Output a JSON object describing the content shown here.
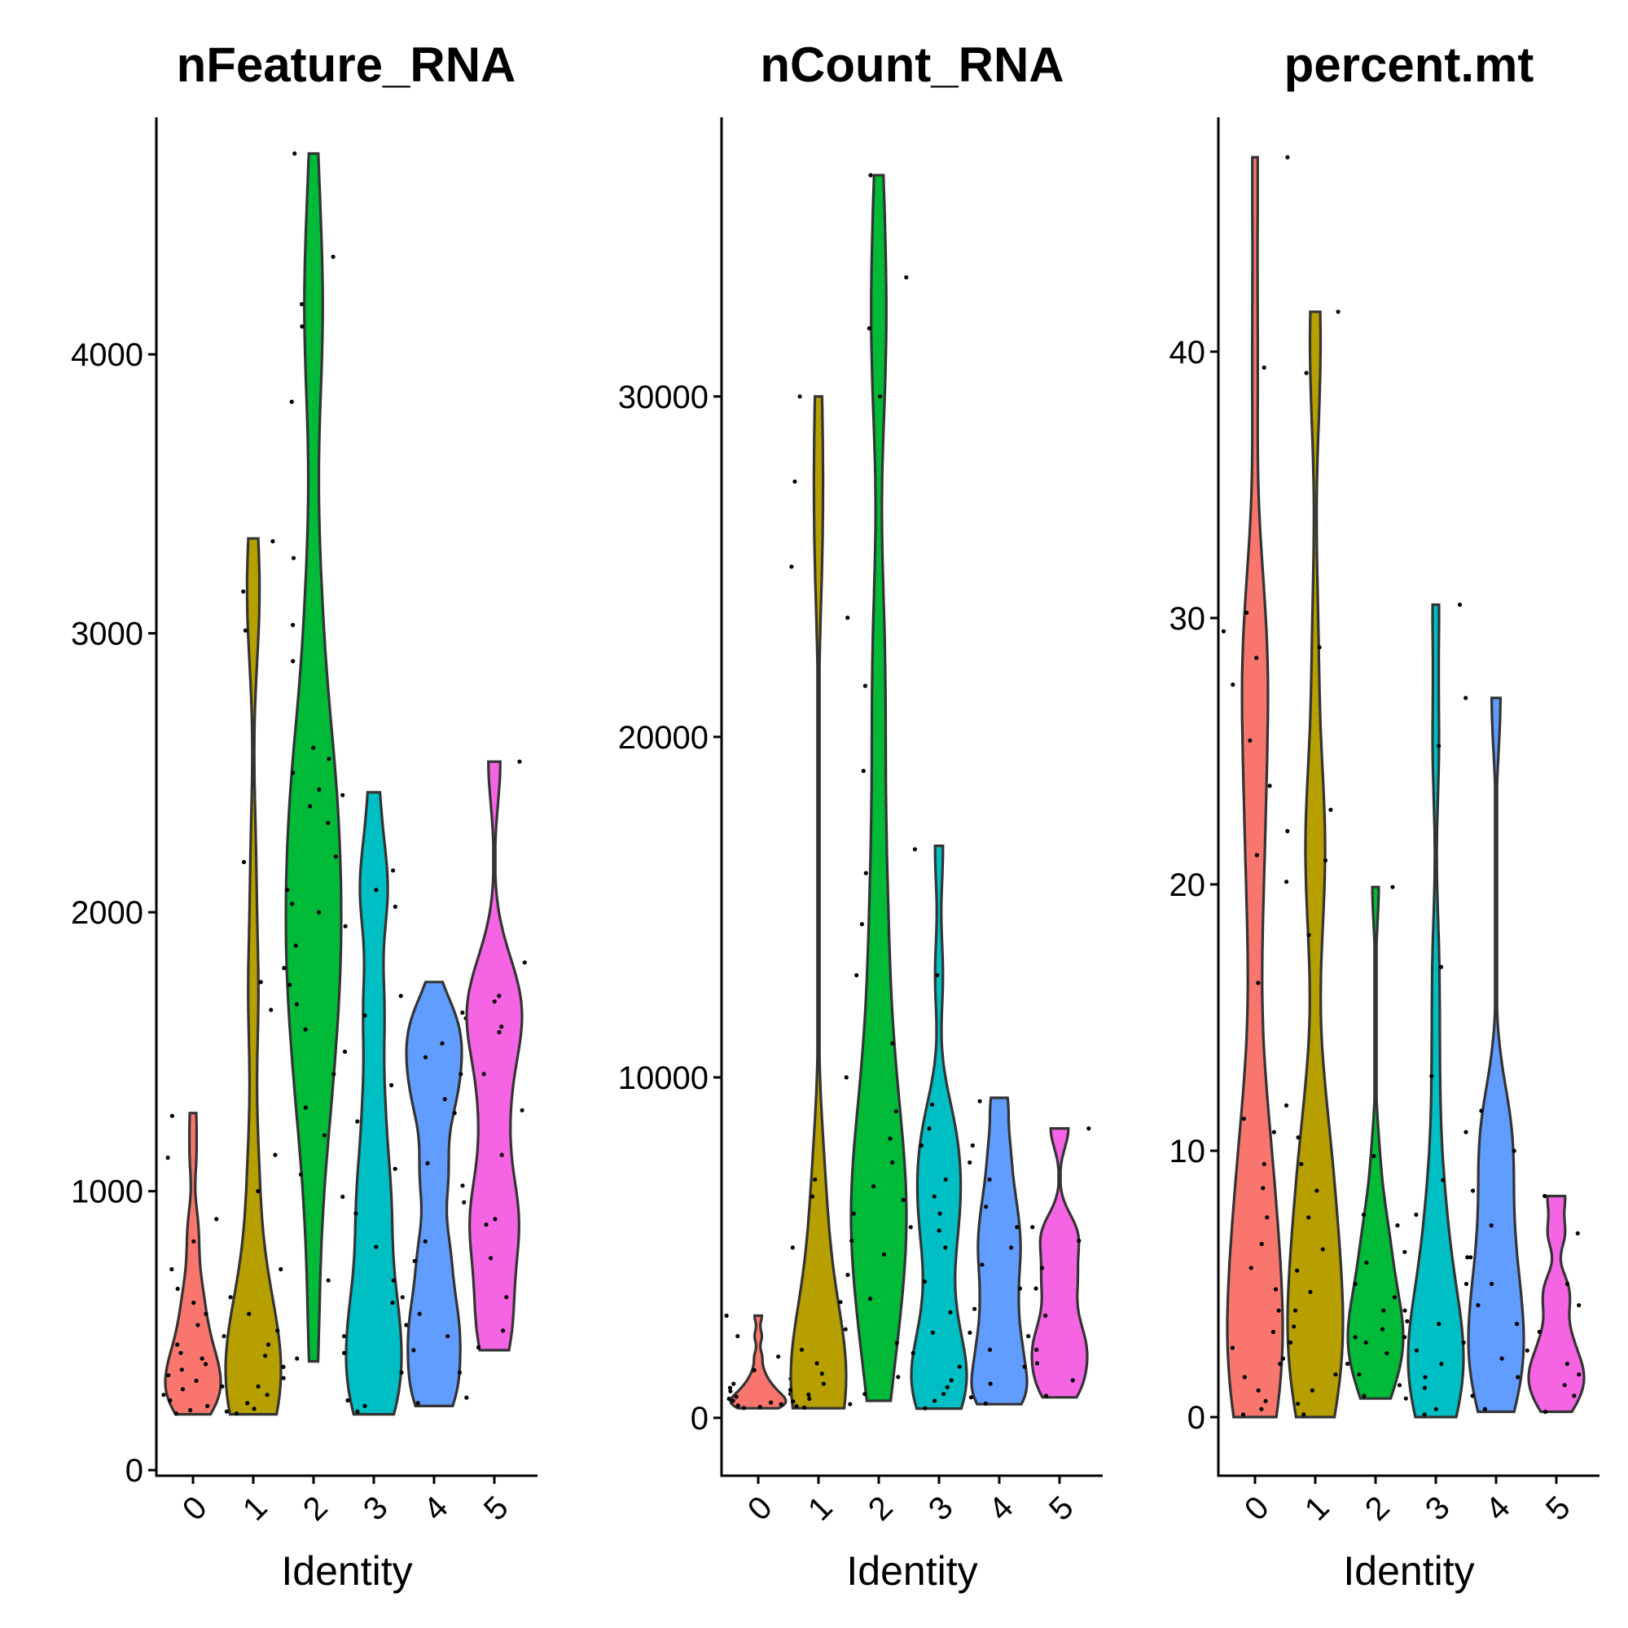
{
  "chart_data": [
    {
      "type": "violin",
      "title": "nFeature_RNA",
      "xlabel": "Identity",
      "ylabel": "",
      "categories": [
        "0",
        "1",
        "2",
        "3",
        "4",
        "5"
      ],
      "colors": [
        "#F8766D",
        "#B79F00",
        "#00BA38",
        "#00BFC4",
        "#619CFF",
        "#F564E3"
      ],
      "ylim": [
        -20,
        4850
      ],
      "yticks": [
        0,
        1000,
        2000,
        3000,
        4000
      ],
      "ytick_labels": [
        "0",
        "1000",
        "2000",
        "3000",
        "4000"
      ],
      "series": [
        {
          "category": "0",
          "min": 200,
          "max": 1280,
          "values": [
            203,
            215,
            230,
            250,
            270,
            290,
            300,
            320,
            340,
            360,
            380,
            400,
            420,
            450,
            480,
            520,
            560,
            600,
            650,
            720,
            820,
            900,
            1120,
            1270
          ]
        },
        {
          "category": "1",
          "min": 200,
          "max": 3340,
          "values": [
            203,
            210,
            220,
            240,
            270,
            300,
            330,
            370,
            410,
            450,
            500,
            560,
            620,
            720,
            1000,
            1130,
            1650,
            1750,
            2180,
            3010,
            3150,
            3330
          ]
        },
        {
          "category": "2",
          "min": 390,
          "max": 4720,
          "values": [
            400,
            680,
            1060,
            1200,
            1300,
            1420,
            1500,
            1580,
            1670,
            1740,
            1800,
            1880,
            1950,
            2000,
            2030,
            2080,
            2200,
            2320,
            2380,
            2440,
            2500,
            2550,
            2590,
            2900,
            3030,
            3270,
            3830,
            4100,
            4180,
            4350,
            4720
          ]
        },
        {
          "category": "3",
          "min": 200,
          "max": 2430,
          "values": [
            210,
            230,
            250,
            350,
            420,
            480,
            520,
            600,
            680,
            800,
            920,
            980,
            1080,
            1250,
            1380,
            1630,
            1700,
            2020,
            2080,
            2150,
            2420
          ]
        },
        {
          "category": "4",
          "min": 230,
          "max": 1750,
          "values": [
            240,
            260,
            350,
            430,
            480,
            560,
            620,
            750,
            820,
            1020,
            1100,
            1280,
            1330,
            1420,
            1480,
            1530,
            1620,
            1640
          ]
        },
        {
          "category": "5",
          "min": 430,
          "max": 2540,
          "values": [
            440,
            500,
            620,
            760,
            880,
            900,
            960,
            1130,
            1290,
            1420,
            1570,
            1590,
            1680,
            1700,
            1820,
            2540
          ]
        }
      ]
    },
    {
      "type": "violin",
      "title": "nCount_RNA",
      "xlabel": "Identity",
      "ylabel": "",
      "categories": [
        "0",
        "1",
        "2",
        "3",
        "4",
        "5"
      ],
      "colors": [
        "#F8766D",
        "#B79F00",
        "#00BA38",
        "#00BFC4",
        "#619CFF",
        "#F564E3"
      ],
      "ylim": [
        -1700,
        38200
      ],
      "yticks": [
        0,
        10000,
        20000,
        30000
      ],
      "ytick_labels": [
        "0",
        "10000",
        "20000",
        "30000"
      ],
      "series": [
        {
          "category": "0",
          "min": 280,
          "max": 3000,
          "values": [
            290,
            320,
            360,
            400,
            450,
            500,
            560,
            620,
            700,
            780,
            880,
            1000,
            1150,
            1400,
            1800,
            2400,
            3000
          ]
        },
        {
          "category": "1",
          "min": 280,
          "max": 30000,
          "values": [
            300,
            340,
            400,
            480,
            560,
            680,
            820,
            1000,
            1300,
            1600,
            2000,
            2600,
            3400,
            5000,
            6500,
            7000,
            25000,
            27500,
            30000
          ]
        },
        {
          "category": "2",
          "min": 500,
          "max": 36500,
          "values": [
            700,
            1200,
            2200,
            3500,
            4200,
            4800,
            5200,
            5600,
            6000,
            6400,
            6800,
            7500,
            8200,
            9000,
            10000,
            11000,
            13000,
            14500,
            16000,
            19000,
            21500,
            23500,
            30000,
            32000,
            33500,
            36500
          ]
        },
        {
          "category": "3",
          "min": 270,
          "max": 16800,
          "values": [
            280,
            500,
            700,
            900,
            1100,
            1500,
            1900,
            2500,
            3100,
            4000,
            5000,
            5500,
            6000,
            6500,
            7000,
            7500,
            8000,
            8500,
            9200,
            13000,
            16700
          ]
        },
        {
          "category": "4",
          "min": 400,
          "max": 9400,
          "values": [
            420,
            600,
            1000,
            1500,
            2000,
            2500,
            3200,
            3800,
            4500,
            5000,
            5600,
            6200,
            7000,
            8000,
            9300
          ]
        },
        {
          "category": "5",
          "min": 600,
          "max": 8500,
          "values": [
            650,
            1100,
            1600,
            2000,
            2400,
            3000,
            3800,
            4400,
            5200,
            5600,
            8500
          ]
        }
      ]
    },
    {
      "type": "violin",
      "title": "percent.mt",
      "xlabel": "Identity",
      "ylabel": "",
      "categories": [
        "0",
        "1",
        "2",
        "3",
        "4",
        "5"
      ],
      "colors": [
        "#F8766D",
        "#B79F00",
        "#00BA38",
        "#00BFC4",
        "#619CFF",
        "#F564E3"
      ],
      "ylim": [
        -2.2,
        48.8
      ],
      "yticks": [
        0,
        10,
        20,
        30,
        40
      ],
      "ytick_labels": [
        "0",
        "10",
        "20",
        "30",
        "40"
      ],
      "series": [
        {
          "category": "0",
          "min": 0,
          "max": 47.3,
          "values": [
            0.1,
            0.3,
            0.6,
            1.0,
            1.5,
            2.0,
            2.6,
            3.2,
            4.0,
            4.8,
            5.6,
            6.5,
            7.5,
            8.6,
            9.5,
            10.7,
            11.2,
            16.3,
            20.1,
            21.1,
            23.7,
            25.4,
            27.5,
            28.5,
            29.5,
            30.2,
            39.4,
            47.3
          ]
        },
        {
          "category": "1",
          "min": 0,
          "max": 41.5,
          "values": [
            0.1,
            0.5,
            1.0,
            1.6,
            2.2,
            2.8,
            3.4,
            4.0,
            4.7,
            5.5,
            6.3,
            7.5,
            8.5,
            9.5,
            10.5,
            11.7,
            18.1,
            20.9,
            22.0,
            22.8,
            28.9,
            39.2,
            41.5
          ]
        },
        {
          "category": "2",
          "min": 0.7,
          "max": 19.9,
          "values": [
            0.8,
            1.2,
            1.6,
            2.0,
            2.4,
            2.8,
            3.0,
            3.3,
            3.6,
            4.0,
            4.5,
            5.0,
            5.8,
            6.2,
            7.2,
            7.6,
            9.8,
            19.9
          ]
        },
        {
          "category": "3",
          "min": 0,
          "max": 30.5,
          "values": [
            0.1,
            0.3,
            0.7,
            1.1,
            1.5,
            2.0,
            2.5,
            3.0,
            3.5,
            4.0,
            5.0,
            6.0,
            7.6,
            8.9,
            12.8,
            16.9,
            25.2,
            30.5
          ]
        },
        {
          "category": "4",
          "min": 0.2,
          "max": 27.0,
          "values": [
            0.3,
            0.8,
            1.5,
            2.2,
            2.8,
            3.5,
            4.2,
            5.0,
            6.0,
            7.2,
            8.5,
            10.0,
            10.7,
            11.5,
            27.0
          ]
        },
        {
          "category": "5",
          "min": 0.2,
          "max": 8.3,
          "values": [
            0.2,
            0.8,
            1.2,
            1.6,
            2.0,
            2.5,
            3.2,
            4.2,
            5.0,
            6.9,
            8.3
          ]
        }
      ]
    }
  ]
}
